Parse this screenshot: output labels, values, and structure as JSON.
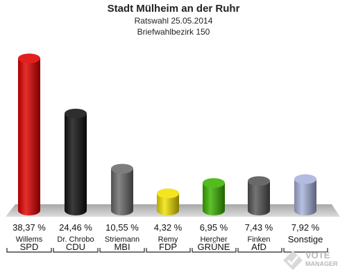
{
  "header": {
    "title": "Stadt Mülheim an der Ruhr",
    "subtitle": "Ratswahl 25.05.2014",
    "district": "Briefwahlbezirk 150"
  },
  "logo": {
    "line1": "VOTE",
    "line2": "MANAGER"
  },
  "chart_data": {
    "type": "bar",
    "style": "3d-cylinder",
    "categories": [
      "SPD",
      "CDU",
      "MBI",
      "FDP",
      "GRÜNE",
      "AfD",
      "Sonstige"
    ],
    "candidates": [
      "Willems",
      "Dr. Chrobo",
      "Striemann",
      "Remy",
      "Hercher",
      "Finken",
      ""
    ],
    "values": [
      38.37,
      24.46,
      10.55,
      4.32,
      6.95,
      7.43,
      7.92
    ],
    "value_labels": [
      "38,37 %",
      "24,46 %",
      "10,55 %",
      "4,32 %",
      "6,95 %",
      "7,43 %",
      "7,92 %"
    ],
    "colors": [
      "#e00000",
      "#111111",
      "#6b6b6b",
      "#f2e200",
      "#3cb300",
      "#555555",
      "#a9b3dc"
    ],
    "ylim": [
      0,
      40
    ],
    "grid": false,
    "legend": "none"
  }
}
